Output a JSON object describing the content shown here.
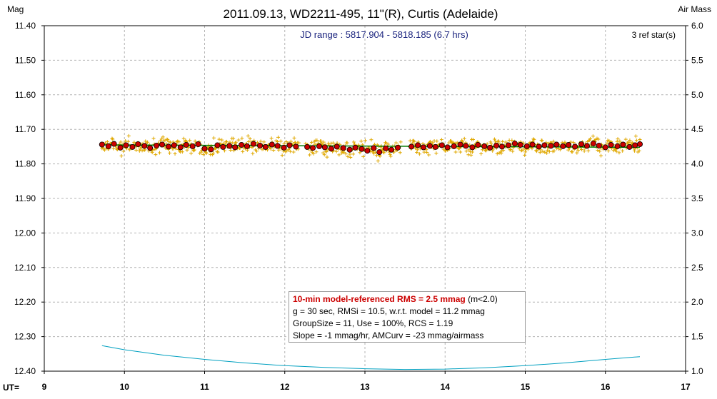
{
  "chart_data": {
    "type": "scatter",
    "title": "2011.09.13, WD2211-495, 11\"(R), Curtis (Adelaide)",
    "ylabel": "Mag",
    "y2label": "Air Mass",
    "xlabel": "UT=",
    "xlim": [
      9,
      17
    ],
    "ylim": [
      12.4,
      11.4
    ],
    "y2lim": [
      1.0,
      6.0
    ],
    "x_ticks": [
      "9",
      "10",
      "11",
      "12",
      "13",
      "14",
      "15",
      "16",
      "17"
    ],
    "y_ticks": [
      "11.40",
      "11.50",
      "11.60",
      "11.70",
      "11.80",
      "11.90",
      "12.00",
      "12.10",
      "12.20",
      "12.30",
      "12.40"
    ],
    "y2_ticks": [
      "6.0",
      "5.5",
      "5.0",
      "4.5",
      "4.0",
      "3.5",
      "3.0",
      "2.5",
      "2.0",
      "1.5",
      "1.0"
    ],
    "grid": true,
    "jd_range": "JD range : 5817.904 - 5818.185 (6.7 hrs)",
    "ref_stars": "3 ref star(s)",
    "stats": {
      "rms_label": "10-min model-referenced RMS = 2.5 mmag",
      "rms_suffix": " (m<2.0)",
      "line2": "g = 30 sec, RMSi = 10.5, w.r.t. model = 11.2 mmag",
      "line3": "GroupSize = 11, Use = 100%, RCS = 1.19",
      "line4": "Slope = -1 mmag/hr, AMCurv = -23 mmag/airmass"
    },
    "series": [
      {
        "kind": "raw",
        "color": "#e0a800",
        "x_start": 9.72,
        "x_end": 16.43,
        "count": 804,
        "mean_mag": 11.748,
        "scatter_mag": 0.011
      },
      {
        "kind": "binned",
        "color": "#cc0000",
        "x": [
          9.72,
          9.8,
          9.87,
          9.95,
          10.02,
          10.1,
          10.17,
          10.25,
          10.32,
          10.4,
          10.47,
          10.55,
          10.62,
          10.7,
          10.77,
          10.85,
          10.92,
          11.0,
          11.08,
          11.16,
          11.23,
          11.31,
          11.38,
          11.46,
          11.53,
          11.61,
          11.69,
          11.76,
          11.84,
          11.91,
          11.99,
          12.06,
          12.14,
          12.28,
          12.35,
          12.43,
          12.5,
          12.58,
          12.65,
          12.73,
          12.81,
          12.88,
          12.96,
          13.03,
          13.11,
          13.18,
          13.26,
          13.33,
          13.41,
          13.58,
          13.66,
          13.73,
          13.81,
          13.88,
          13.96,
          14.03,
          14.11,
          14.19,
          14.26,
          14.34,
          14.41,
          14.49,
          14.56,
          14.64,
          14.71,
          14.79,
          14.87,
          14.94,
          15.02,
          15.09,
          15.17,
          15.24,
          15.32,
          15.39,
          15.47,
          15.54,
          15.62,
          15.7,
          15.77,
          15.85,
          15.92,
          16.0,
          16.07,
          16.15,
          16.22,
          16.3,
          16.37,
          16.43
        ],
        "y": [
          11.744,
          11.749,
          11.742,
          11.753,
          11.746,
          11.751,
          11.743,
          11.748,
          11.754,
          11.747,
          11.744,
          11.75,
          11.746,
          11.752,
          11.745,
          11.749,
          11.743,
          11.756,
          11.758,
          11.746,
          11.751,
          11.748,
          11.752,
          11.745,
          11.749,
          11.742,
          11.747,
          11.751,
          11.744,
          11.748,
          11.753,
          11.746,
          11.75,
          11.751,
          11.754,
          11.749,
          11.752,
          11.756,
          11.75,
          11.754,
          11.759,
          11.753,
          11.757,
          11.762,
          11.754,
          11.766,
          11.755,
          11.759,
          11.753,
          11.75,
          11.746,
          11.752,
          11.748,
          11.751,
          11.746,
          11.752,
          11.749,
          11.744,
          11.748,
          11.752,
          11.745,
          11.749,
          11.753,
          11.747,
          11.75,
          11.746,
          11.741,
          11.745,
          11.749,
          11.744,
          11.75,
          11.746,
          11.748,
          11.744,
          11.749,
          11.745,
          11.75,
          11.743,
          11.748,
          11.741,
          11.747,
          11.752,
          11.745,
          11.749,
          11.744,
          11.751,
          11.746,
          11.743
        ]
      },
      {
        "kind": "model",
        "color": "#007a00",
        "x": [
          9.72,
          16.43
        ],
        "y": [
          11.745,
          11.752
        ]
      },
      {
        "kind": "airmass",
        "color": "#00a0c0",
        "axis": "y2",
        "x": [
          9.72,
          10.0,
          10.5,
          11.0,
          11.5,
          12.0,
          12.5,
          13.0,
          13.5,
          14.0,
          14.5,
          15.0,
          15.5,
          16.0,
          16.43
        ],
        "y": [
          1.37,
          1.31,
          1.23,
          1.17,
          1.12,
          1.08,
          1.055,
          1.035,
          1.025,
          1.03,
          1.05,
          1.08,
          1.12,
          1.17,
          1.21
        ]
      }
    ]
  }
}
